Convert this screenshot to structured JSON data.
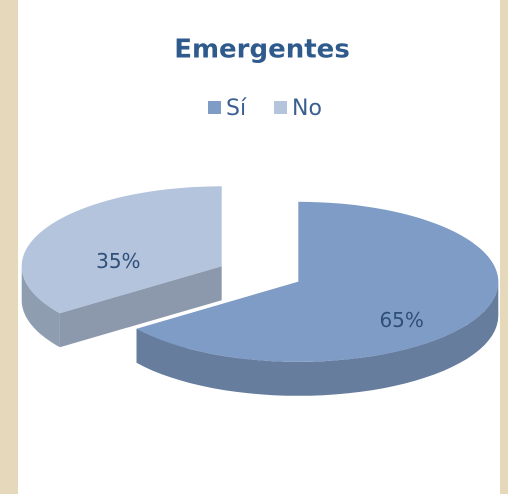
{
  "chart_data": {
    "type": "pie",
    "title": "Emergentes",
    "categories": [
      "Sí",
      "No"
    ],
    "values": [
      65,
      35
    ],
    "value_labels": [
      "65%",
      "35%"
    ],
    "colors": [
      "#7f9cc6",
      "#b3c4dc"
    ],
    "legend": "top"
  }
}
